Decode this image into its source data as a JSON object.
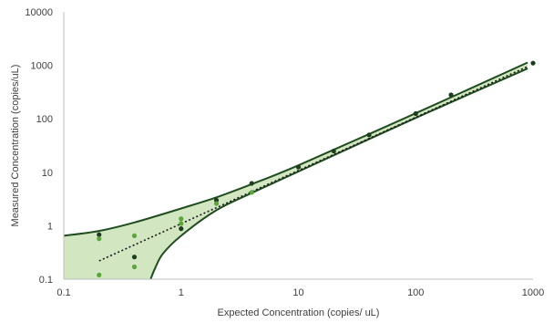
{
  "chart_data": {
    "type": "scatter",
    "title": "",
    "xlabel": "Expected Concentration (copies/ uL)",
    "ylabel": "Measured Concentration (copies/uL)",
    "x_scale": "log",
    "y_scale": "log",
    "xlim": [
      0.1,
      1000
    ],
    "ylim": [
      0.1,
      10000
    ],
    "x_ticks": [
      "0.1",
      "1",
      "10",
      "100",
      "1000"
    ],
    "y_ticks": [
      "0.1",
      "1",
      "10",
      "100",
      "1000",
      "10000"
    ],
    "grid": false,
    "legend": "none",
    "colors": {
      "band_fill": "#d3e6c2",
      "band_edge": "#1f4d1f",
      "point_dark": "#1e3d1e",
      "point_light": "#5aa63a",
      "trendline": "#1a1a1a",
      "axis": "#bfbfbf",
      "text": "#404040"
    },
    "series": [
      {
        "values": [
          {
            "x": 0.2,
            "y": 0.68,
            "shade": "dark"
          },
          {
            "x": 0.2,
            "y": 0.57,
            "shade": "light"
          },
          {
            "x": 0.2,
            "y": 0.12,
            "shade": "light"
          },
          {
            "x": 0.4,
            "y": 0.65,
            "shade": "light"
          },
          {
            "x": 0.4,
            "y": 0.26,
            "shade": "dark"
          },
          {
            "x": 0.4,
            "y": 0.17,
            "shade": "light"
          },
          {
            "x": 1,
            "y": 1.35,
            "shade": "light"
          },
          {
            "x": 1,
            "y": 1.1,
            "shade": "light"
          },
          {
            "x": 1,
            "y": 0.88,
            "shade": "dark"
          },
          {
            "x": 2,
            "y": 3.0,
            "shade": "dark"
          },
          {
            "x": 2,
            "y": 2.6,
            "shade": "light"
          },
          {
            "x": 4,
            "y": 6.2,
            "shade": "dark"
          },
          {
            "x": 4,
            "y": 4.2,
            "shade": "light"
          },
          {
            "x": 10,
            "y": 12.5,
            "shade": "dark"
          },
          {
            "x": 20,
            "y": 25.0,
            "shade": "dark"
          },
          {
            "x": 40,
            "y": 50.0,
            "shade": "dark"
          },
          {
            "x": 100,
            "y": 125.0,
            "shade": "dark"
          },
          {
            "x": 200,
            "y": 280.0,
            "shade": "dark"
          },
          {
            "x": 1000,
            "y": 1100.0,
            "shade": "dark"
          }
        ]
      }
    ],
    "trendline": {
      "style": "dotted",
      "from": {
        "x": 0.2,
        "y": 0.22
      },
      "to": {
        "x": 900,
        "y": 950
      }
    },
    "confidence_band": {
      "upper": [
        {
          "x": 0.1,
          "y": 0.65
        },
        {
          "x": 0.2,
          "y": 0.8
        },
        {
          "x": 0.4,
          "y": 1.15
        },
        {
          "x": 1,
          "y": 2.1
        },
        {
          "x": 2,
          "y": 3.4
        },
        {
          "x": 4,
          "y": 6.0
        },
        {
          "x": 10,
          "y": 13.5
        },
        {
          "x": 100,
          "y": 127
        },
        {
          "x": 900,
          "y": 1130
        }
      ],
      "lower": [
        {
          "x": 0.55,
          "y": 0.1
        },
        {
          "x": 0.6,
          "y": 0.16
        },
        {
          "x": 0.7,
          "y": 0.3
        },
        {
          "x": 1,
          "y": 0.65
        },
        {
          "x": 2,
          "y": 1.95
        },
        {
          "x": 4,
          "y": 4.1
        },
        {
          "x": 10,
          "y": 10.3
        },
        {
          "x": 100,
          "y": 104
        },
        {
          "x": 900,
          "y": 870
        }
      ]
    }
  }
}
